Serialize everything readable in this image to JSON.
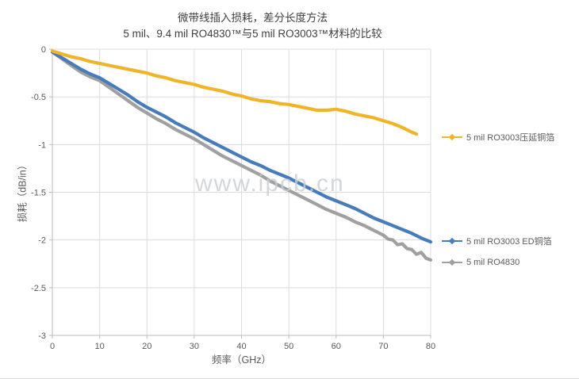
{
  "title": {
    "line1": "微带线插入损耗，差分长度方法",
    "line2": "5 mil、9.4 mil RO4830™与5 mil RO3003™材料的比较"
  },
  "watermark": {
    "text": "www.ipcb.cn"
  },
  "colors": {
    "rolled_copper": "#F0B428",
    "ed_copper": "#467CB9",
    "ro4830": "#A0A0A0",
    "gridline": "#DCDCDC",
    "axis_line": "#BBBBBB",
    "tick_text": "#595959",
    "title_text": "#3F3F3F",
    "watermark_text": "#C9CED4"
  },
  "chart_data": {
    "type": "line",
    "title": "微带线插入损耗，差分长度方法",
    "subtitle": "5 mil、9.4 mil RO4830™与5 mil RO3003™材料的比较",
    "xlabel": "频率（GHz）",
    "ylabel": "损耗（dB/in）",
    "xlim": [
      0,
      80
    ],
    "ylim": [
      -3,
      0
    ],
    "x_ticks": [
      0,
      10,
      20,
      30,
      40,
      50,
      60,
      70,
      80
    ],
    "x_tick_labels": [
      "0",
      "10",
      "20",
      "30",
      "40",
      "50",
      "60",
      "70",
      "80"
    ],
    "y_ticks": [
      0,
      -0.5,
      -1,
      -1.5,
      -2,
      -2.5,
      -3
    ],
    "y_tick_labels": [
      "0",
      "-0.5",
      "-1",
      "-1.5",
      "-2",
      "-2.5",
      "-3"
    ],
    "grid": true,
    "legend_position": "right",
    "series": [
      {
        "name": "5 mil RO4830",
        "color": "#A0A0A0",
        "x": [
          0,
          2,
          4,
          6,
          8,
          10,
          12,
          14,
          16,
          18,
          20,
          22,
          24,
          26,
          28,
          30,
          32,
          34,
          36,
          38,
          40,
          42,
          44,
          46,
          48,
          50,
          52,
          54,
          56,
          58,
          60,
          62,
          64,
          66,
          68,
          70,
          71,
          72,
          73,
          74,
          75,
          76,
          77,
          78,
          79,
          80
        ],
        "y": [
          -0.03,
          -0.1,
          -0.17,
          -0.24,
          -0.29,
          -0.33,
          -0.4,
          -0.47,
          -0.54,
          -0.61,
          -0.67,
          -0.73,
          -0.78,
          -0.84,
          -0.89,
          -0.94,
          -1.0,
          -1.06,
          -1.12,
          -1.17,
          -1.22,
          -1.27,
          -1.32,
          -1.38,
          -1.43,
          -1.48,
          -1.53,
          -1.58,
          -1.63,
          -1.68,
          -1.72,
          -1.76,
          -1.81,
          -1.85,
          -1.9,
          -1.95,
          -1.99,
          -2.0,
          -2.05,
          -2.04,
          -2.09,
          -2.1,
          -2.15,
          -2.13,
          -2.19,
          -2.21
        ]
      },
      {
        "name": "5 mil RO3003 ED铜箔",
        "color": "#467CB9",
        "x": [
          0,
          2,
          4,
          6,
          8,
          10,
          12,
          14,
          16,
          18,
          20,
          22,
          24,
          26,
          28,
          30,
          32,
          34,
          36,
          38,
          40,
          42,
          44,
          46,
          48,
          50,
          52,
          54,
          56,
          58,
          60,
          62,
          64,
          66,
          68,
          70,
          72,
          74,
          76,
          78,
          80
        ],
        "y": [
          -0.03,
          -0.09,
          -0.15,
          -0.21,
          -0.26,
          -0.3,
          -0.36,
          -0.42,
          -0.48,
          -0.55,
          -0.61,
          -0.66,
          -0.71,
          -0.77,
          -0.82,
          -0.87,
          -0.93,
          -0.98,
          -1.03,
          -1.08,
          -1.13,
          -1.18,
          -1.22,
          -1.27,
          -1.31,
          -1.35,
          -1.4,
          -1.45,
          -1.5,
          -1.55,
          -1.59,
          -1.63,
          -1.67,
          -1.72,
          -1.77,
          -1.81,
          -1.85,
          -1.89,
          -1.93,
          -1.98,
          -2.02
        ]
      },
      {
        "name": "5 mil RO3003压延铜箔",
        "color": "#F0B428",
        "x": [
          0,
          2,
          4,
          6,
          8,
          10,
          12,
          14,
          16,
          18,
          20,
          22,
          24,
          26,
          28,
          30,
          32,
          34,
          36,
          38,
          40,
          42,
          44,
          46,
          48,
          50,
          52,
          54,
          56,
          58,
          60,
          62,
          64,
          66,
          68,
          70,
          72,
          74,
          76,
          77
        ],
        "y": [
          -0.02,
          -0.05,
          -0.08,
          -0.1,
          -0.13,
          -0.15,
          -0.17,
          -0.19,
          -0.21,
          -0.23,
          -0.25,
          -0.28,
          -0.3,
          -0.33,
          -0.35,
          -0.37,
          -0.4,
          -0.42,
          -0.44,
          -0.47,
          -0.49,
          -0.52,
          -0.54,
          -0.55,
          -0.57,
          -0.58,
          -0.6,
          -0.62,
          -0.64,
          -0.64,
          -0.63,
          -0.65,
          -0.68,
          -0.7,
          -0.72,
          -0.75,
          -0.78,
          -0.82,
          -0.87,
          -0.89
        ]
      }
    ]
  },
  "legend": {
    "items": [
      {
        "label": "5 mil RO3003压延铜箔",
        "color": "#F0B428"
      },
      {
        "label": "5 mil RO3003 ED铜箔",
        "color": "#467CB9"
      },
      {
        "label": "5 mil RO4830",
        "color": "#A0A0A0"
      }
    ]
  }
}
